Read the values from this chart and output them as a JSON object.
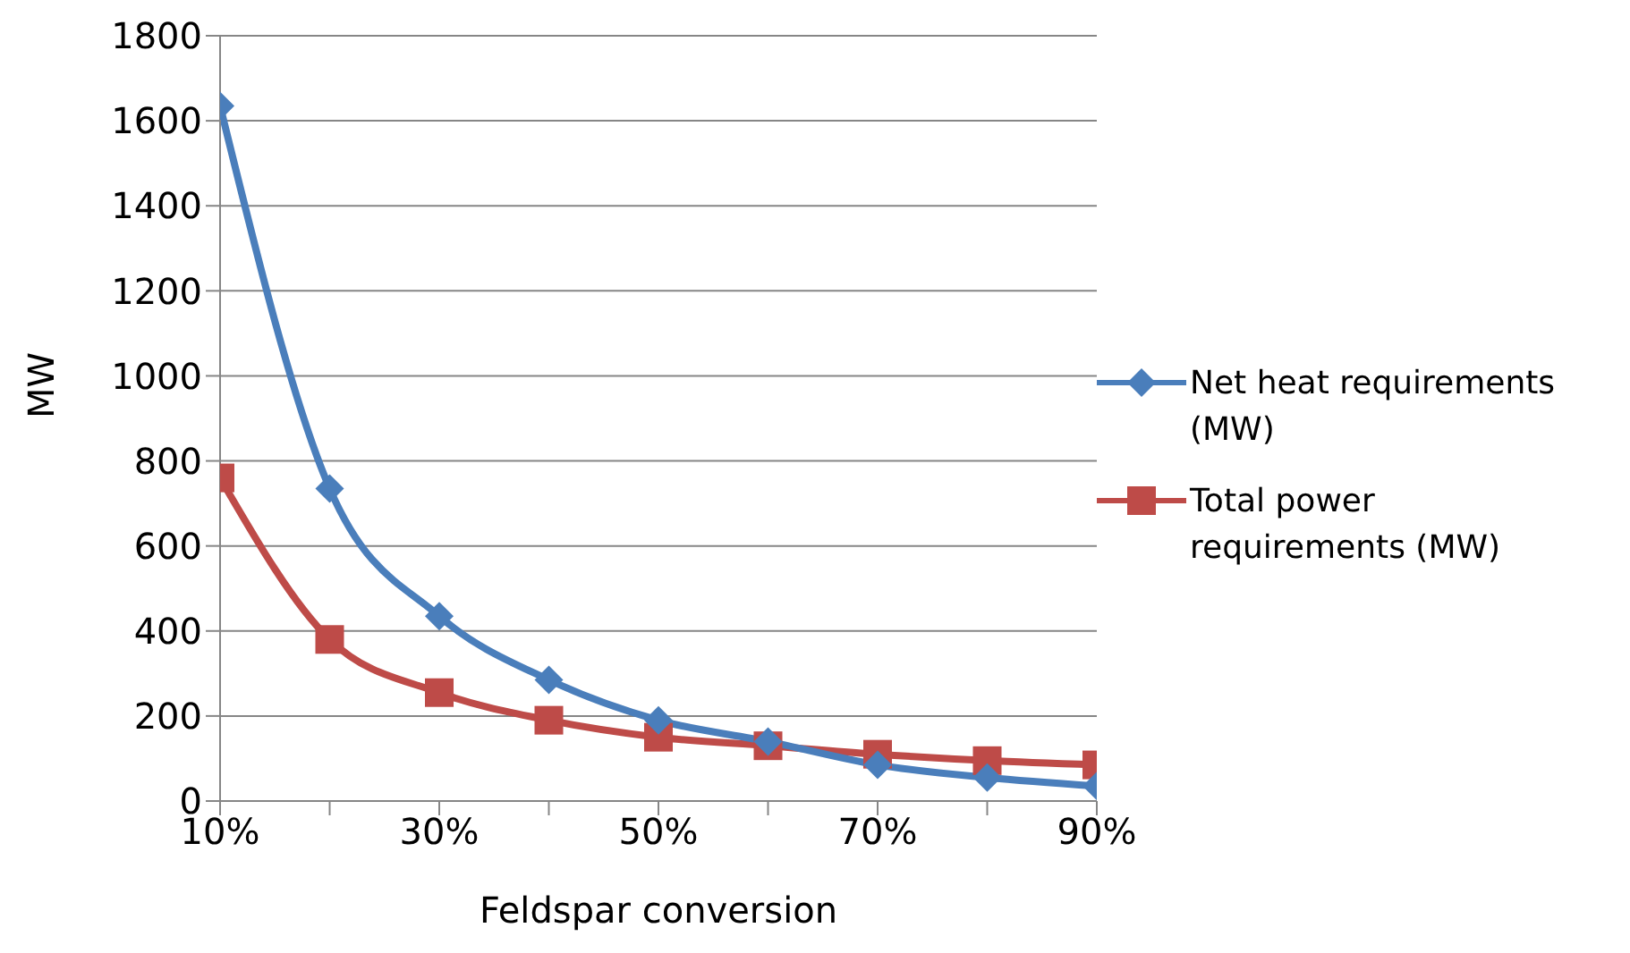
{
  "chart_data": {
    "type": "line",
    "xlabel": "Feldspar conversion",
    "ylabel": "MW",
    "x": [
      10,
      20,
      30,
      40,
      50,
      60,
      70,
      80,
      90
    ],
    "series": [
      {
        "name": "Net heat requirements (MW)",
        "color": "#4a7ebb",
        "marker": "diamond",
        "values": [
          1635,
          735,
          435,
          285,
          190,
          140,
          85,
          55,
          35
        ]
      },
      {
        "name": "Total power requirements (MW)",
        "color": "#be4b48",
        "marker": "square",
        "values": [
          760,
          380,
          255,
          190,
          150,
          130,
          110,
          95,
          85
        ]
      }
    ],
    "xlim": [
      10,
      90
    ],
    "xticks": [
      {
        "value": 10,
        "label": "10%"
      },
      {
        "value": 20,
        "label": null
      },
      {
        "value": 30,
        "label": "30%"
      },
      {
        "value": 40,
        "label": null
      },
      {
        "value": 50,
        "label": "50%"
      },
      {
        "value": 60,
        "label": null
      },
      {
        "value": 70,
        "label": "70%"
      },
      {
        "value": 80,
        "label": null
      },
      {
        "value": 90,
        "label": "90%"
      }
    ],
    "ylim": [
      0,
      1800
    ],
    "yticks": [
      0,
      200,
      400,
      600,
      800,
      1000,
      1200,
      1400,
      1600,
      1800
    ],
    "grid": "y",
    "legend": "right",
    "line_style": "solid"
  }
}
